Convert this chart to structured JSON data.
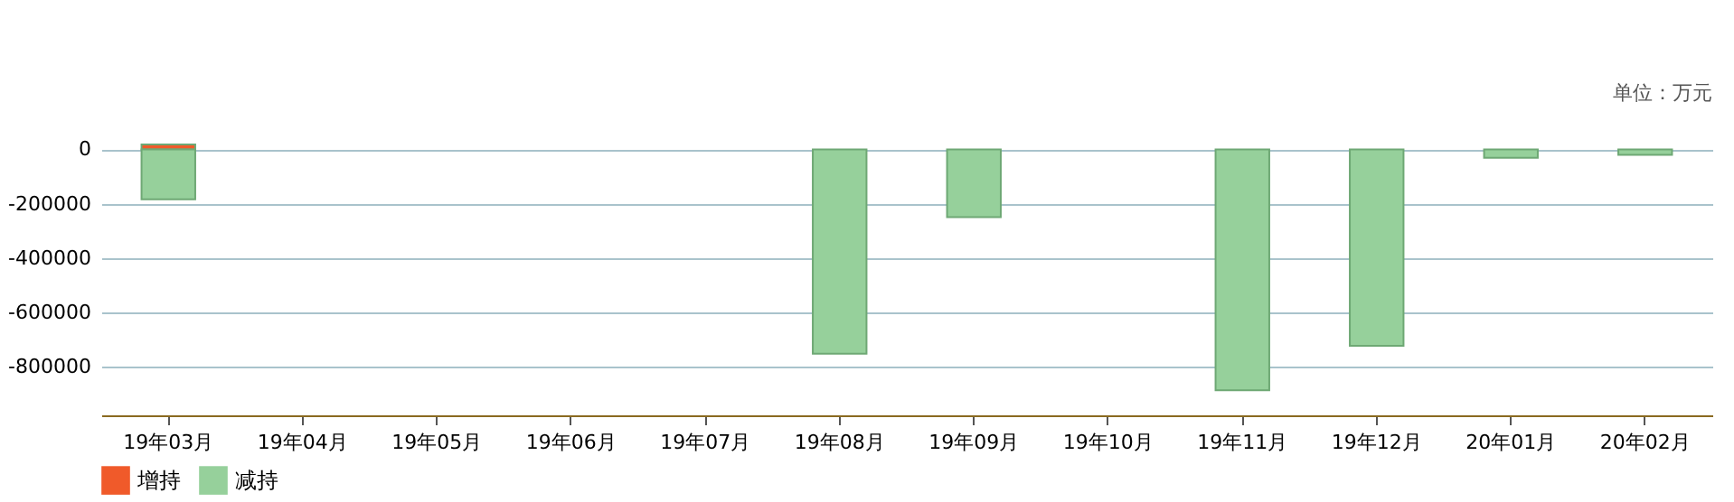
{
  "chart_data": {
    "type": "bar",
    "annotations": [
      "单位：万元"
    ],
    "categories": [
      "19年03月",
      "19年04月",
      "19年05月",
      "19年06月",
      "19年07月",
      "19年08月",
      "19年09月",
      "19年10月",
      "19年11月",
      "19年12月",
      "20年01月",
      "20年02月"
    ],
    "series": [
      {
        "name": "增持",
        "color": "#f05a2a",
        "values": [
          18000,
          null,
          null,
          null,
          null,
          null,
          null,
          null,
          null,
          null,
          null,
          null
        ]
      },
      {
        "name": "减持",
        "color": "#96d09b",
        "values": [
          -184000,
          null,
          null,
          null,
          null,
          -753000,
          -250000,
          null,
          -888000,
          -724000,
          -31000,
          -20000
        ]
      }
    ],
    "ylim": [
      -980000,
      18000
    ],
    "yticks": [
      0,
      -200000,
      -400000,
      -600000,
      -800000
    ],
    "grid": "y",
    "legend": "bottom"
  }
}
